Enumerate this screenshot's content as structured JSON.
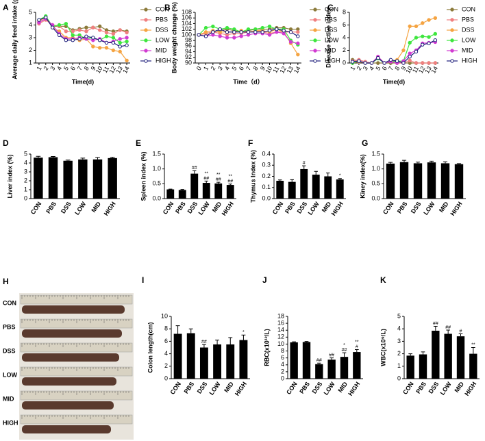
{
  "chart_data": [
    {
      "type": "line",
      "panel": "A",
      "y_label": "Average daily feed intake (g)",
      "x_label": "Time(d)",
      "x": [
        1,
        2,
        3,
        4,
        5,
        6,
        7,
        8,
        9,
        10,
        11,
        12,
        13,
        14
      ],
      "xlim": [
        0.5,
        14.5
      ],
      "ylim": [
        1,
        5
      ],
      "yticks": [
        1,
        2,
        3,
        4,
        5
      ],
      "series": [
        {
          "name": "CON",
          "color": "#8b7a3a",
          "values": [
            4.2,
            4.5,
            3.9,
            3.9,
            3.9,
            3.6,
            3.7,
            3.8,
            3.8,
            3.9,
            3.6,
            3.5,
            3.6,
            3.5
          ]
        },
        {
          "name": "PBS",
          "color": "#f08080",
          "values": [
            4.1,
            4.4,
            4.0,
            3.9,
            3.5,
            3.5,
            3.6,
            3.5,
            3.8,
            3.6,
            3.4,
            3.3,
            3.6,
            3.4
          ]
        },
        {
          "name": "DSS",
          "color": "#f5a442",
          "values": [
            4.3,
            4.6,
            3.8,
            3.5,
            3.0,
            3.0,
            2.8,
            2.9,
            2.3,
            2.2,
            2.2,
            2.0,
            1.9,
            1.2
          ]
        },
        {
          "name": "LOW",
          "color": "#3ee63e",
          "values": [
            4.4,
            4.7,
            3.9,
            4.0,
            4.1,
            3.2,
            3.2,
            2.9,
            3.0,
            2.8,
            3.1,
            3.0,
            2.6,
            2.7
          ]
        },
        {
          "name": "MID",
          "color": "#d23bd2",
          "values": [
            4.2,
            4.5,
            4.0,
            3.3,
            2.9,
            2.9,
            3.0,
            2.9,
            2.8,
            2.9,
            2.6,
            2.7,
            2.9,
            3.0
          ]
        },
        {
          "name": "HIGH",
          "color": "#1c1c7a",
          "values": [
            4.4,
            4.6,
            3.8,
            3.2,
            2.8,
            2.8,
            2.9,
            3.1,
            3.0,
            2.8,
            2.6,
            2.6,
            2.3,
            2.4
          ]
        }
      ]
    },
    {
      "type": "line",
      "panel": "B",
      "y_label": "Body weight change (%)",
      "x_label": "Time（d）",
      "x": [
        0,
        1,
        2,
        3,
        4,
        5,
        6,
        7,
        8,
        9,
        10,
        11,
        12,
        13,
        14
      ],
      "xlim": [
        -0.5,
        14.5
      ],
      "ylim": [
        90,
        108
      ],
      "yticks": [
        90,
        92,
        94,
        96,
        98,
        100,
        102,
        104,
        106,
        108
      ],
      "series": [
        {
          "name": "CON",
          "color": "#8b7a3a",
          "values": [
            100,
            100.5,
            101,
            101.5,
            102,
            101.5,
            101,
            101.5,
            102,
            102,
            102,
            102.5,
            102.5,
            102,
            102
          ]
        },
        {
          "name": "PBS",
          "color": "#f08080",
          "values": [
            100,
            100.5,
            101,
            100.5,
            100,
            100.5,
            100.5,
            101,
            101.5,
            101,
            100.5,
            101,
            101,
            101,
            101
          ]
        },
        {
          "name": "DSS",
          "color": "#f5a442",
          "values": [
            100,
            101,
            101.5,
            101,
            101,
            101,
            101.5,
            101,
            101.5,
            101.5,
            101,
            102,
            101,
            97,
            93
          ]
        },
        {
          "name": "LOW",
          "color": "#3ee63e",
          "values": [
            100,
            102.5,
            103,
            102,
            102.5,
            102,
            101,
            102,
            102,
            102.5,
            103,
            102,
            102,
            98,
            96.5
          ]
        },
        {
          "name": "MID",
          "color": "#d23bd2",
          "values": [
            100,
            99.5,
            100,
            99.5,
            99,
            99,
            99.5,
            100,
            100.5,
            100.5,
            100,
            101,
            100.5,
            97.5,
            97
          ]
        },
        {
          "name": "HIGH",
          "color": "#1c1c7a",
          "values": [
            100,
            99.5,
            101,
            102,
            101,
            101,
            101,
            101,
            101,
            101,
            101.5,
            102,
            101.5,
            101,
            99.5
          ]
        }
      ]
    },
    {
      "type": "line",
      "panel": "C",
      "y_label": "Disease active index",
      "x_label": "Time(d)",
      "x": [
        1,
        2,
        3,
        4,
        5,
        6,
        7,
        8,
        9,
        10,
        11,
        12,
        13,
        14
      ],
      "xlim": [
        0.5,
        14.5
      ],
      "ylim": [
        0,
        8
      ],
      "yticks": [
        0,
        2,
        4,
        6,
        8
      ],
      "series": [
        {
          "name": "CON",
          "color": "#8b7a3a",
          "values": [
            0.5,
            0.3,
            0,
            0,
            0,
            0,
            0,
            0,
            0,
            0,
            0,
            0,
            0,
            0
          ]
        },
        {
          "name": "PBS",
          "color": "#f08080",
          "values": [
            0.3,
            0.5,
            0.2,
            0,
            1,
            0,
            0.3,
            0,
            0,
            0.4,
            0,
            0,
            0,
            0
          ]
        },
        {
          "name": "DSS",
          "color": "#f5a442",
          "values": [
            0,
            0.2,
            0,
            0,
            0.8,
            0,
            0.2,
            0.5,
            2,
            5.8,
            5.8,
            6.3,
            6.8,
            7.1
          ]
        },
        {
          "name": "LOW",
          "color": "#3ee63e",
          "values": [
            0,
            0.3,
            0,
            0,
            0.7,
            0,
            0.2,
            0.3,
            0.3,
            3.2,
            4,
            4.2,
            4.1,
            4.6
          ]
        },
        {
          "name": "MID",
          "color": "#d23bd2",
          "values": [
            0.2,
            0.3,
            0,
            0,
            1,
            0,
            0.2,
            0,
            0.3,
            1.5,
            2,
            3.1,
            3.2,
            3.3
          ]
        },
        {
          "name": "HIGH",
          "color": "#1c1c7a",
          "values": [
            0.2,
            0.3,
            0,
            0,
            0.8,
            0,
            0.5,
            0.3,
            0,
            1,
            1.8,
            2.9,
            3.1,
            3.6
          ]
        }
      ]
    },
    {
      "type": "bar",
      "panel": "D",
      "y_label": "Liver index (%)",
      "color": "#000000",
      "categories": [
        "CON",
        "PBS",
        "DSS",
        "LOW",
        "MID",
        "HIGH"
      ],
      "values": [
        4.6,
        4.65,
        4.25,
        4.4,
        4.4,
        4.55
      ],
      "errors": [
        0.15,
        0.08,
        0.08,
        0.15,
        0.22,
        0.1
      ],
      "ylim": [
        0,
        5
      ],
      "yticks": [
        0,
        1,
        2,
        3,
        4,
        5
      ],
      "annotations": [
        null,
        null,
        null,
        null,
        null,
        null
      ]
    },
    {
      "type": "bar",
      "panel": "E",
      "y_label": "Spleen index (%)",
      "color": "#000000",
      "categories": [
        "CON",
        "PBS",
        "DSS",
        "LOW",
        "MID",
        "HIGH"
      ],
      "values": [
        0.31,
        0.29,
        0.84,
        0.53,
        0.51,
        0.46
      ],
      "errors": [
        0.01,
        0.02,
        0.1,
        0.06,
        0.04,
        0.03
      ],
      "ylim": [
        0,
        1.5
      ],
      "yticks": [
        {
          "value": 0,
          "label": "0.0"
        },
        0.5,
        {
          "value": 1,
          "label": "1.0"
        },
        1.5
      ],
      "annotations": [
        null,
        null,
        [
          "##"
        ],
        [
          "**",
          "##"
        ],
        [
          "**",
          "##"
        ],
        [
          "**",
          "##"
        ]
      ]
    },
    {
      "type": "bar",
      "panel": "F",
      "y_label": "Thymus Index (%)",
      "color": "#000000",
      "categories": [
        "CON",
        "PBS",
        "DSS",
        "LOW",
        "MID",
        "HIGH"
      ],
      "values": [
        0.16,
        0.15,
        0.265,
        0.215,
        0.2,
        0.172
      ],
      "errors": [
        0.008,
        0.02,
        0.03,
        0.03,
        0.03,
        0.008
      ],
      "ylim": [
        0,
        0.4
      ],
      "yticks": [
        {
          "value": 0,
          "label": "0.0"
        },
        0.1,
        0.2,
        0.3,
        0.4
      ],
      "annotations": [
        null,
        null,
        [
          "#"
        ],
        null,
        null,
        [
          "*"
        ]
      ]
    },
    {
      "type": "bar",
      "panel": "G",
      "y_label": "Kiney index(%)",
      "color": "#000000",
      "categories": [
        "CON",
        "PBS",
        "DSS",
        "LOW",
        "MID",
        "HIGH"
      ],
      "values": [
        1.18,
        1.23,
        1.19,
        1.22,
        1.19,
        1.16
      ],
      "errors": [
        0.04,
        0.06,
        0.04,
        0.04,
        0.05,
        0.02
      ],
      "ylim": [
        0,
        1.5
      ],
      "yticks": [
        {
          "value": 0,
          "label": "0.0"
        },
        0.5,
        {
          "value": 1,
          "label": "1.0"
        },
        1.5
      ],
      "annotations": [
        null,
        null,
        null,
        null,
        null,
        null
      ]
    },
    {
      "type": "bar",
      "panel": "I",
      "y_label": "Colon length(cm)",
      "color": "#000000",
      "categories": [
        "CON",
        "PBS",
        "DSS",
        "LOW",
        "MID",
        "HIGH"
      ],
      "values": [
        7.2,
        7.3,
        5.0,
        5.5,
        5.5,
        6.2
      ],
      "errors": [
        1.3,
        0.7,
        0.5,
        0.7,
        1.1,
        0.8
      ],
      "ylim": [
        0,
        10
      ],
      "yticks": [
        0,
        2,
        4,
        6,
        8,
        10
      ],
      "annotations": [
        null,
        null,
        [
          "##"
        ],
        null,
        null,
        [
          "*"
        ]
      ]
    },
    {
      "type": "bar",
      "panel": "J",
      "y_label": "RBC(x10¹²/L)",
      "color": "#000000",
      "categories": [
        "CON",
        "PBS",
        "DSS",
        "LOW",
        "MID",
        "HIGH"
      ],
      "values": [
        10.5,
        10.6,
        4.2,
        5.5,
        6.3,
        7.7
      ],
      "errors": [
        0.15,
        0.15,
        0.3,
        0.5,
        1.2,
        0.7
      ],
      "ylim": [
        0,
        18
      ],
      "yticks": [
        0,
        2,
        4,
        6,
        8,
        10,
        12,
        14,
        16,
        18
      ],
      "annotations": [
        null,
        null,
        [
          "##"
        ],
        [
          "##"
        ],
        [
          "*",
          "##"
        ],
        [
          "**",
          "#"
        ]
      ]
    },
    {
      "type": "bar",
      "panel": "K",
      "y_label": "WBC(x10⁹/L)",
      "color": "#000000",
      "categories": [
        "CON",
        "PBS",
        "DSS",
        "LOW",
        "MID",
        "HIGH"
      ],
      "values": [
        1.85,
        1.95,
        3.85,
        3.6,
        3.4,
        2.0
      ],
      "errors": [
        0.15,
        0.2,
        0.35,
        0.3,
        0.2,
        0.5
      ],
      "ylim": [
        0,
        5
      ],
      "yticks": [
        0,
        1,
        2,
        3,
        4,
        5
      ],
      "annotations": [
        null,
        null,
        [
          "##"
        ],
        [
          "##"
        ],
        [
          "#"
        ],
        [
          "**"
        ]
      ]
    }
  ],
  "photo": {
    "panel": "H",
    "rows": [
      "CON",
      "PBS",
      "DSS",
      "LOW",
      "MID",
      "HIGH"
    ]
  }
}
